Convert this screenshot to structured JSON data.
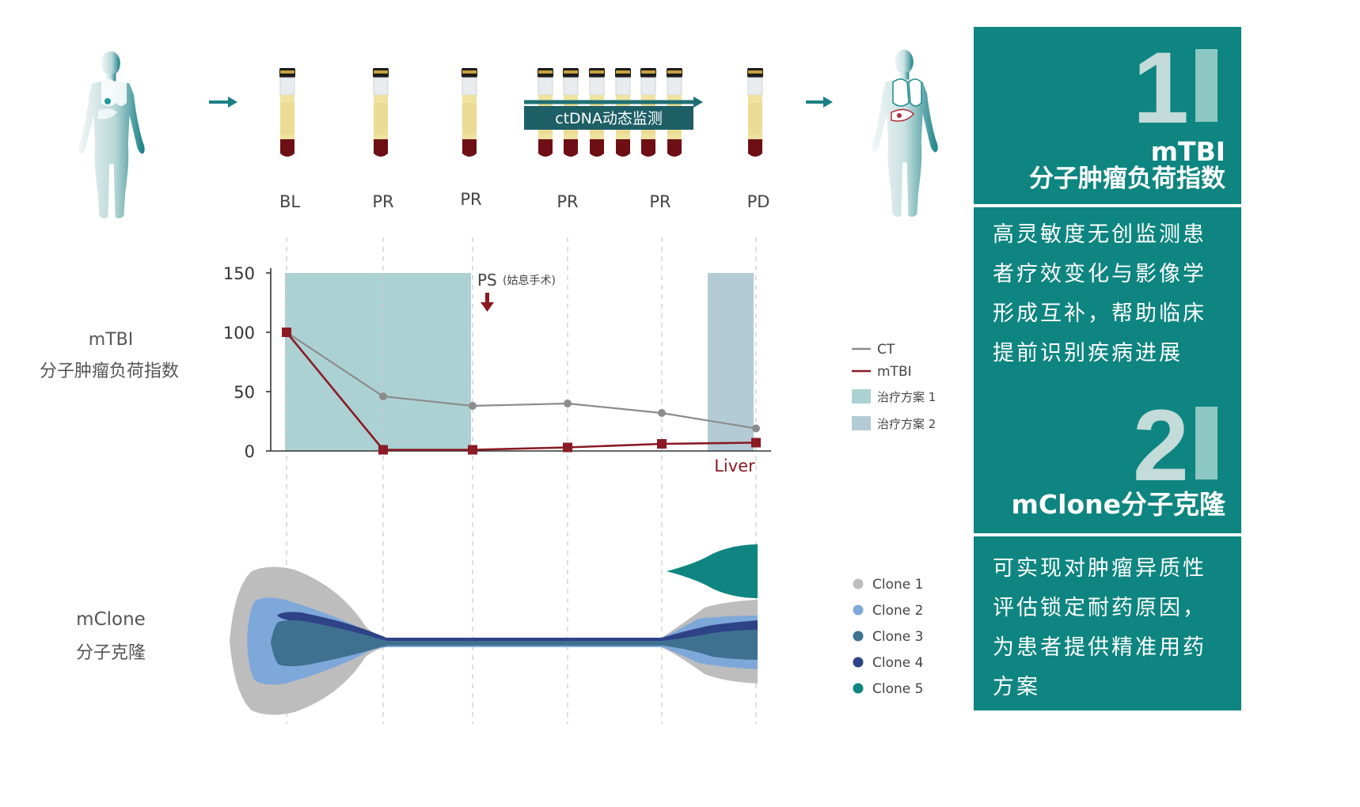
{
  "colors": {
    "teal": "#0e8580",
    "dark_red": "#8a1a24",
    "gray_line": "#8c8c8c",
    "band_1": "#acd1d2",
    "band_2": "#b3cbd5",
    "clone_1": "#bdbdbd",
    "clone_2": "#7fa8da",
    "clone_3": "#3e7190",
    "clone_4": "#2e4287",
    "clone_5": "#0e8580"
  },
  "timeline": {
    "stages": [
      "BL",
      "PR",
      "PR",
      "PR",
      "PR",
      "PD"
    ],
    "monitor_label": "ctDNA动态监测"
  },
  "left_labels": {
    "mtbi_title": "mTBI",
    "mtbi_subtitle": "分子肿瘤负荷指数",
    "mclone_title": "mClone",
    "mclone_subtitle": "分子克隆"
  },
  "chart_data": {
    "type": "line",
    "x_stages": [
      "BL",
      "PR",
      "PR",
      "PR",
      "PR",
      "PD"
    ],
    "yticks": [
      0,
      50,
      100,
      150
    ],
    "ylim": [
      0,
      150
    ],
    "series": [
      {
        "name": "CT",
        "color": "#8c8c8c",
        "marker": "circle",
        "values": [
          100,
          46,
          38,
          40,
          32,
          19
        ]
      },
      {
        "name": "mTBI",
        "color": "#8a1a24",
        "marker": "square",
        "values": [
          100,
          1,
          1,
          3,
          6,
          7
        ]
      }
    ],
    "bands": [
      {
        "name": "治疗方案 1",
        "from_stage": 0,
        "to_stage": 2,
        "color": "#acd1d2"
      },
      {
        "name": "治疗方案 2",
        "from_stage": 5,
        "color": "#b3cbd5"
      }
    ],
    "annotations": {
      "ps_label": "PS",
      "ps_note": "(姑息手术)",
      "ps_stage": 2,
      "liver_label": "Liver"
    },
    "legend_position": "right"
  },
  "mclone": {
    "clones": [
      {
        "name": "Clone 1",
        "color": "#bdbdbd"
      },
      {
        "name": "Clone 2",
        "color": "#7fa8da"
      },
      {
        "name": "Clone 3",
        "color": "#3e7190"
      },
      {
        "name": "Clone 4",
        "color": "#2e4287"
      },
      {
        "name": "Clone 5",
        "color": "#0e8580"
      }
    ]
  },
  "panel1": {
    "number": "1",
    "title_1": "mTBI",
    "title_2": "分子肿瘤负荷指数",
    "description": "高灵敏度无创监测患者疗效变化与影像学形成互补，帮助临床提前识别疾病进展"
  },
  "panel2": {
    "number": "2",
    "title": "mClone分子克隆",
    "description": "可实现对肿瘤异质性评估锁定耐药原因，为患者提供精准用药方案"
  }
}
